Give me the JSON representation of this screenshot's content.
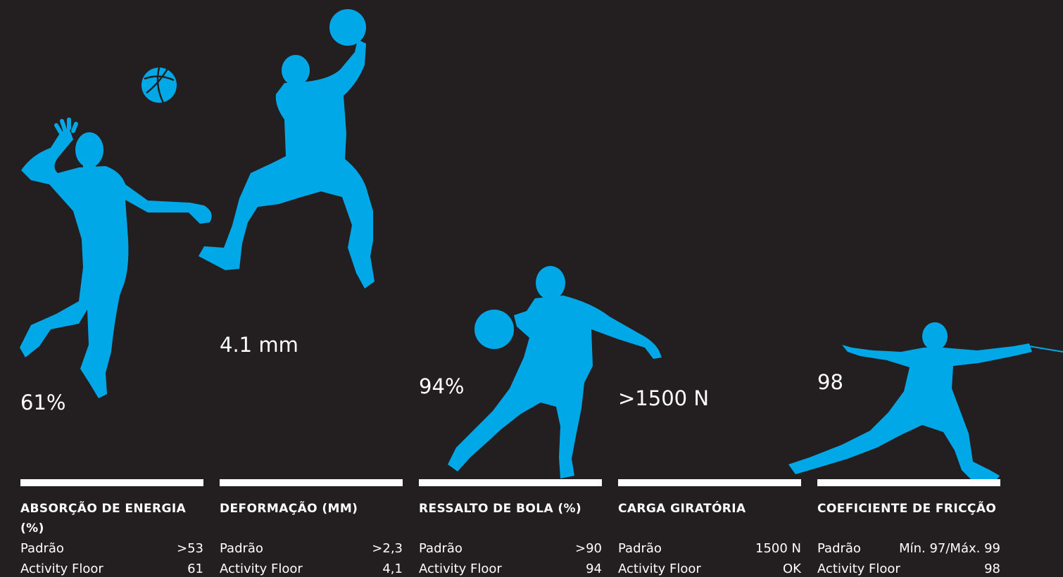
{
  "accent_color": "#00a8e8",
  "background_color": "#231f20",
  "columns": [
    {
      "value": "61%",
      "heading": "ABSORÇÃO DE ENERGIA (%)",
      "standard_label": "Padrão",
      "standard_value": ">53",
      "product_label": "Activity Floor",
      "product_value": "61",
      "figure": "volleyball-player-silhouette"
    },
    {
      "value": "4.1 mm",
      "heading": "DEFORMAÇÃO (MM)",
      "standard_label": "Padrão",
      "standard_value": ">2,3",
      "product_label": "Activity Floor",
      "product_value": "4,1",
      "figure": "handball-player-silhouette"
    },
    {
      "value": "94%",
      "heading": "RESSALTO DE BOLA (%)",
      "standard_label": "Padrão",
      "standard_value": ">90",
      "product_label": "Activity Floor",
      "product_value": "94",
      "figure": "basketball-player-silhouette"
    },
    {
      "value": ">1500 N",
      "heading": "CARGA GIRATÓRIA",
      "standard_label": "Padrão",
      "standard_value": "1500 N",
      "product_label": "Activity Floor",
      "product_value": "OK",
      "figure": ""
    },
    {
      "value": "98",
      "heading": "COEFICIENTE DE FRICÇÃO",
      "standard_label": "Padrão",
      "standard_value": "Mín. 97/Máx. 99",
      "product_label": "Activity Floor",
      "product_value": "98",
      "figure": "fencer-silhouette"
    }
  ]
}
